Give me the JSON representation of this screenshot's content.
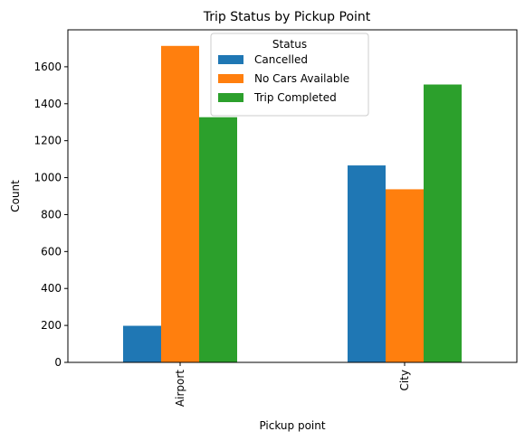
{
  "chart_data": {
    "type": "bar",
    "title": "Trip Status by Pickup Point",
    "xlabel": "Pickup point",
    "ylabel": "Count",
    "categories": [
      "Airport",
      "City"
    ],
    "series": [
      {
        "name": "Cancelled",
        "color": "#1f77b4",
        "values": [
          198,
          1066
        ]
      },
      {
        "name": "No Cars Available",
        "color": "#ff7f0e",
        "values": [
          1713,
          937
        ]
      },
      {
        "name": "Trip Completed",
        "color": "#2ca02c",
        "values": [
          1327,
          1504
        ]
      }
    ],
    "ylim": [
      0,
      1800
    ],
    "yticks": [
      0,
      200,
      400,
      600,
      800,
      1000,
      1200,
      1400,
      1600
    ],
    "grid": false,
    "legend": {
      "title": "Status",
      "placement": "top-center"
    }
  }
}
